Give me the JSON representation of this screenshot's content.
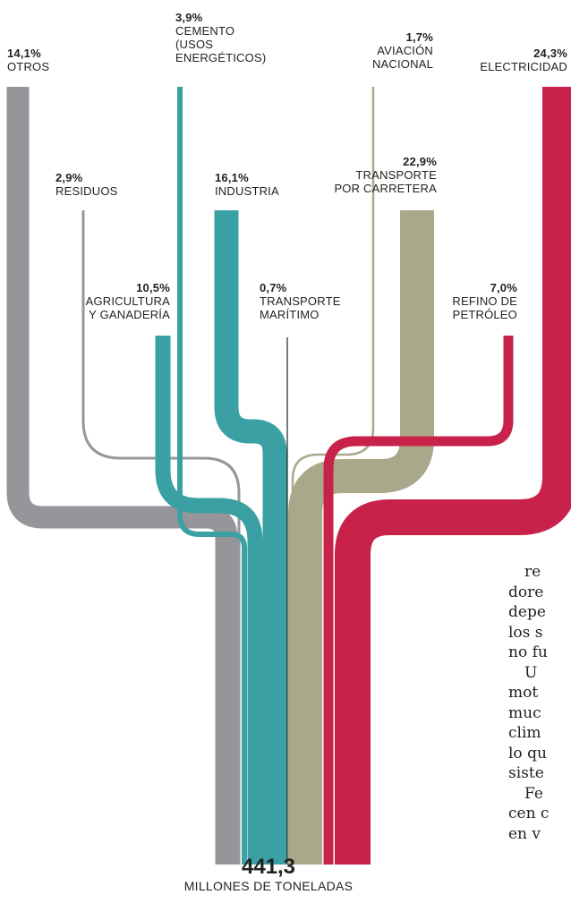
{
  "diagram": {
    "type": "sankey",
    "sources": [
      {
        "id": "otros",
        "percent": "14,1%",
        "label": [
          "OTROS"
        ],
        "color": "#96969a"
      },
      {
        "id": "residuos",
        "percent": "2,9%",
        "label": [
          "RESIDUOS"
        ],
        "color": "#96969a"
      },
      {
        "id": "cemento",
        "percent": "3,9%",
        "label": [
          "CEMENTO",
          "(USOS",
          "ENERGÉTICOS)"
        ],
        "color": "#3aa0a3"
      },
      {
        "id": "agricultura",
        "percent": "10,5%",
        "label": [
          "AGRICULTURA",
          "Y GANADERÍA"
        ],
        "color": "#3aa0a3"
      },
      {
        "id": "industria",
        "percent": "16,1%",
        "label": [
          "INDUSTRIA"
        ],
        "color": "#3aa0a3"
      },
      {
        "id": "maritimo",
        "percent": "0,7%",
        "label": [
          "TRANSPORTE",
          "MARÍTIMO"
        ],
        "color": "#222222"
      },
      {
        "id": "aviacion",
        "percent": "1,7%",
        "label": [
          "AVIACIÓN",
          "NACIONAL"
        ],
        "color": "#a9a88a"
      },
      {
        "id": "carretera",
        "percent": "22,9%",
        "label": [
          "TRANSPORTE",
          "POR CARRETERA"
        ],
        "color": "#a9a88a"
      },
      {
        "id": "refino",
        "percent": "7,0%",
        "label": [
          "REFINO DE",
          "PETRÓLEO"
        ],
        "color": "#c8224a"
      },
      {
        "id": "electricidad",
        "percent": "24,3%",
        "label": [
          "ELECTRICIDAD"
        ],
        "color": "#c8224a"
      }
    ],
    "total": {
      "value": "441,3",
      "unit": "MILLONES DE TONELADAS"
    }
  },
  "article_fragment": [
    "re",
    "dore",
    "depe",
    "los s",
    "no fu",
    "U",
    "mot",
    "muc",
    "clim",
    "lo qu",
    "siste",
    "Fe",
    "cen c",
    "en v"
  ]
}
